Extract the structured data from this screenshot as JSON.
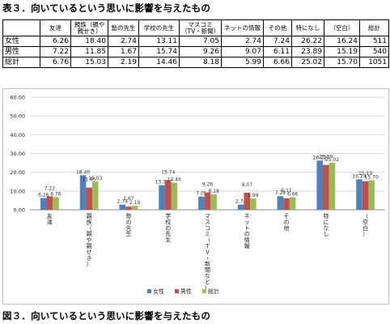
{
  "table_title": "表３．向いているという思いに影響を与えたもの",
  "figure_caption": "図３．向いているという思いに影響を与えたもの",
  "table": {
    "headers": [
      "友達",
      "親族（親や親せき）",
      "塾の先生",
      "学校の先生",
      "マスコミ（TV・新聞）",
      "ネットの情報",
      "その他",
      "特になし",
      "（空白）",
      "総計"
    ],
    "rows": [
      {
        "label": "女性",
        "values": [
          "6.26",
          "18.40",
          "2.74",
          "13.11",
          "7.05",
          "2.74",
          "7.24",
          "26.22",
          "16.24",
          "511"
        ]
      },
      {
        "label": "男性",
        "values": [
          "7.22",
          "11.85",
          "1.67",
          "15.74",
          "9.26",
          "9.07",
          "6.11",
          "23.89",
          "15.19",
          "540"
        ]
      },
      {
        "label": "総計",
        "values": [
          "6.76",
          "15.03",
          "2.19",
          "14.46",
          "8.18",
          "5.99",
          "6.66",
          "25.02",
          "15.70",
          "1051"
        ]
      }
    ]
  },
  "chart_data": {
    "type": "bar",
    "categories": [
      "友達",
      "親族（親や親せき）",
      "塾の先生",
      "学校の先生",
      "マスコミ（TV・新聞など）",
      "ネットの情報",
      "その他",
      "特になし",
      "（空白）"
    ],
    "series": [
      {
        "name": "女性",
        "values": [
          6.26,
          18.4,
          2.74,
          13.11,
          7.05,
          2.74,
          7.24,
          26.22,
          16.24
        ],
        "color": "#4f81bd"
      },
      {
        "name": "男性",
        "values": [
          7.22,
          11.85,
          1.67,
          15.74,
          9.26,
          9.07,
          6.11,
          23.89,
          15.19
        ],
        "color": "#c0504d"
      },
      {
        "name": "総計",
        "values": [
          6.76,
          15.03,
          2.19,
          14.46,
          8.18,
          5.99,
          6.66,
          25.02,
          15.7
        ],
        "color": "#9bbb59"
      }
    ],
    "yticks": [
      "0.00",
      "10.00",
      "20.00",
      "30.00",
      "40.00",
      "50.00",
      "60.00"
    ],
    "ylim": [
      0,
      60
    ],
    "grid": true,
    "legend_position": "bottom"
  }
}
